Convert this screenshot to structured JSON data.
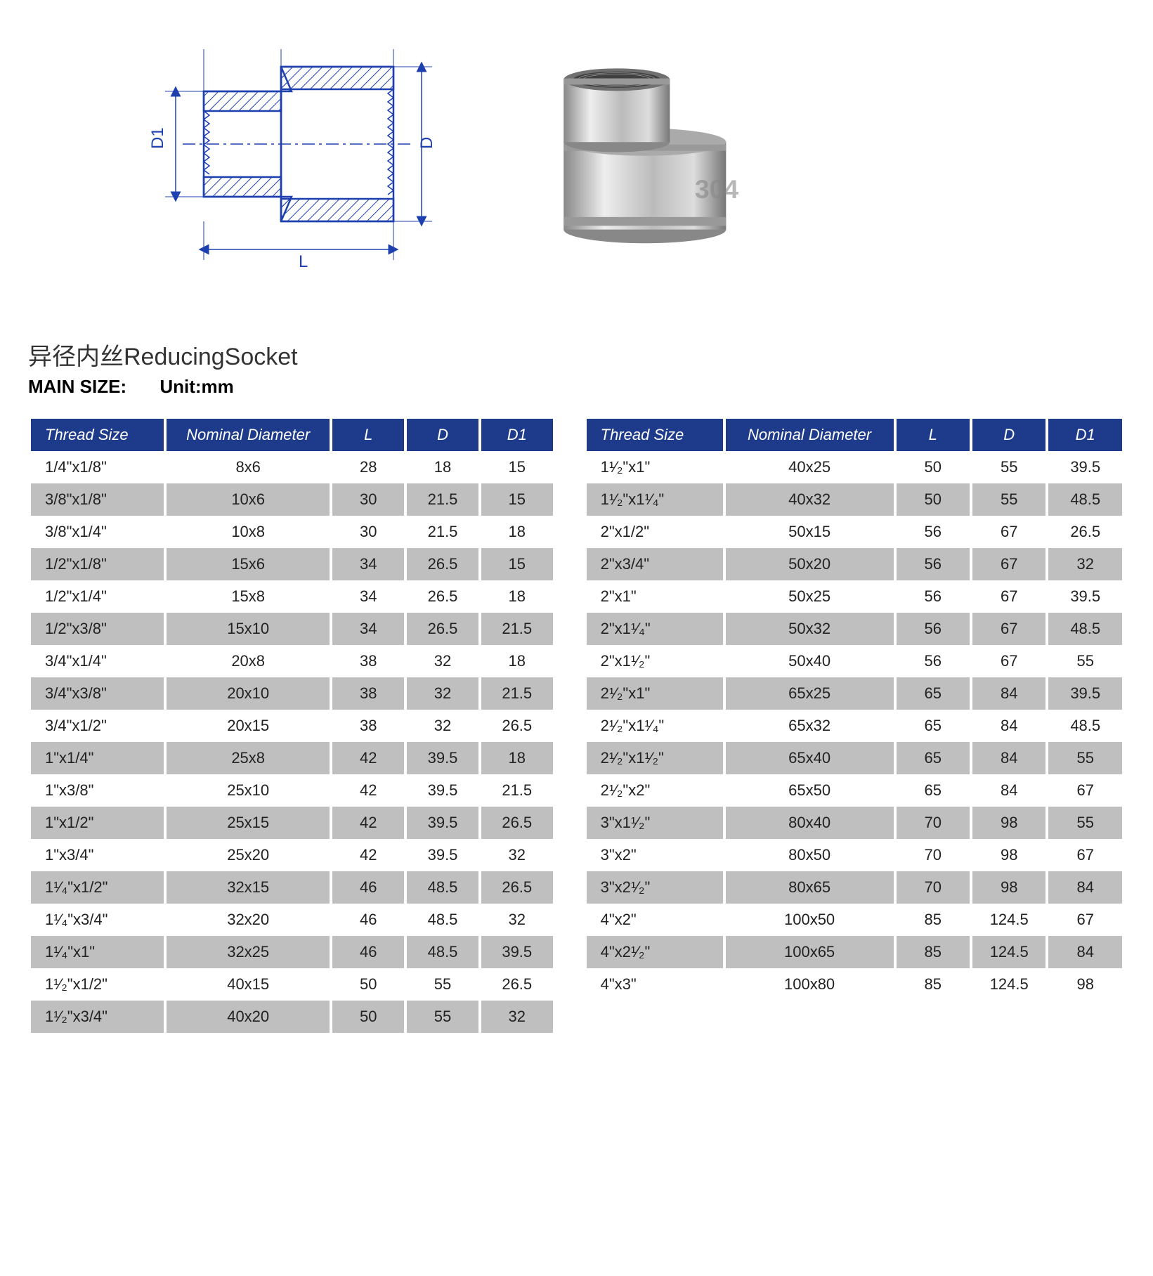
{
  "title": "异径内丝ReducingSocket",
  "subtitle_label": "MAIN  SIZE:",
  "subtitle_unit": "Unit:mm",
  "diagram": {
    "labels": {
      "L": "L",
      "D": "D",
      "D1": "D1"
    },
    "stroke": "#1e40af",
    "hatch": "#1e40af"
  },
  "photo": {
    "description": "stainless-steel-reducing-socket",
    "body_fill": "#d0d0d0",
    "highlight": "#f0f0f0",
    "shadow": "#888888"
  },
  "table_header": {
    "thread": "Thread Size",
    "nominal": "Nominal  Diameter",
    "L": "L",
    "D": "D",
    "D1": "D1"
  },
  "table_header2": {
    "thread": "Thread Size",
    "nominal": "Nominal Diameter",
    "L": "L",
    "D": "D",
    "D1": "D1"
  },
  "colors": {
    "header_bg": "#1e3a8a",
    "row_alt": "#bfbfbf",
    "row_base": "#ffffff"
  },
  "table_left": [
    {
      "thread": "1/4\"x1/8\"",
      "nom": "8x6",
      "L": "28",
      "D": "18",
      "D1": "15"
    },
    {
      "thread": "3/8\"x1/8\"",
      "nom": "10x6",
      "L": "30",
      "D": "21.5",
      "D1": "15"
    },
    {
      "thread": "3/8\"x1/4\"",
      "nom": "10x8",
      "L": "30",
      "D": "21.5",
      "D1": "18"
    },
    {
      "thread": "1/2\"x1/8\"",
      "nom": "15x6",
      "L": "34",
      "D": "26.5",
      "D1": "15"
    },
    {
      "thread": "1/2\"x1/4\"",
      "nom": "15x8",
      "L": "34",
      "D": "26.5",
      "D1": "18"
    },
    {
      "thread": "1/2\"x3/8\"",
      "nom": "15x10",
      "L": "34",
      "D": "26.5",
      "D1": "21.5"
    },
    {
      "thread": "3/4\"x1/4\"",
      "nom": "20x8",
      "L": "38",
      "D": "32",
      "D1": "18"
    },
    {
      "thread": "3/4\"x3/8\"",
      "nom": "20x10",
      "L": "38",
      "D": "32",
      "D1": "21.5"
    },
    {
      "thread": "3/4\"x1/2\"",
      "nom": "20x15",
      "L": "38",
      "D": "32",
      "D1": "26.5"
    },
    {
      "thread": "1\"x1/4\"",
      "nom": "25x8",
      "L": "42",
      "D": "39.5",
      "D1": "18"
    },
    {
      "thread": "1\"x3/8\"",
      "nom": "25x10",
      "L": "42",
      "D": "39.5",
      "D1": "21.5"
    },
    {
      "thread": "1\"x1/2\"",
      "nom": "25x15",
      "L": "42",
      "D": "39.5",
      "D1": "26.5"
    },
    {
      "thread": "1\"x3/4\"",
      "nom": "25x20",
      "L": "42",
      "D": "39.5",
      "D1": "32"
    },
    {
      "thread": "1¹⁄₄\"x1/2\"",
      "nom": "32x15",
      "L": "46",
      "D": "48.5",
      "D1": "26.5"
    },
    {
      "thread": "1¹⁄₄\"x3/4\"",
      "nom": "32x20",
      "L": "46",
      "D": "48.5",
      "D1": "32"
    },
    {
      "thread": "1¹⁄₄\"x1\"",
      "nom": "32x25",
      "L": "46",
      "D": "48.5",
      "D1": "39.5"
    },
    {
      "thread": "1¹⁄₂\"x1/2\"",
      "nom": "40x15",
      "L": "50",
      "D": "55",
      "D1": "26.5"
    },
    {
      "thread": "1¹⁄₂\"x3/4\"",
      "nom": "40x20",
      "L": "50",
      "D": "55",
      "D1": "32"
    }
  ],
  "table_right": [
    {
      "thread": "1¹⁄₂\"x1\"",
      "nom": "40x25",
      "L": "50",
      "D": "55",
      "D1": "39.5"
    },
    {
      "thread": "1¹⁄₂\"x1¹⁄₄\"",
      "nom": "40x32",
      "L": "50",
      "D": "55",
      "D1": "48.5"
    },
    {
      "thread": "2\"x1/2\"",
      "nom": "50x15",
      "L": "56",
      "D": "67",
      "D1": "26.5"
    },
    {
      "thread": "2\"x3/4\"",
      "nom": "50x20",
      "L": "56",
      "D": "67",
      "D1": "32"
    },
    {
      "thread": "2\"x1\"",
      "nom": "50x25",
      "L": "56",
      "D": "67",
      "D1": "39.5"
    },
    {
      "thread": "2\"x1¹⁄₄\"",
      "nom": "50x32",
      "L": "56",
      "D": "67",
      "D1": "48.5"
    },
    {
      "thread": "2\"x1¹⁄₂\"",
      "nom": "50x40",
      "L": "56",
      "D": "67",
      "D1": "55"
    },
    {
      "thread": "2¹⁄₂\"x1\"",
      "nom": "65x25",
      "L": "65",
      "D": "84",
      "D1": "39.5"
    },
    {
      "thread": "2¹⁄₂\"x1¹⁄₄\"",
      "nom": "65x32",
      "L": "65",
      "D": "84",
      "D1": "48.5"
    },
    {
      "thread": "2¹⁄₂\"x1¹⁄₂\"",
      "nom": "65x40",
      "L": "65",
      "D": "84",
      "D1": "55"
    },
    {
      "thread": "2¹⁄₂\"x2\"",
      "nom": "65x50",
      "L": "65",
      "D": "84",
      "D1": "67"
    },
    {
      "thread": "3\"x1¹⁄₂\"",
      "nom": "80x40",
      "L": "70",
      "D": "98",
      "D1": "55"
    },
    {
      "thread": "3\"x2\"",
      "nom": "80x50",
      "L": "70",
      "D": "98",
      "D1": "67"
    },
    {
      "thread": "3\"x2¹⁄₂\"",
      "nom": "80x65",
      "L": "70",
      "D": "98",
      "D1": "84"
    },
    {
      "thread": "4\"x2\"",
      "nom": "100x50",
      "L": "85",
      "D": "124.5",
      "D1": "67"
    },
    {
      "thread": "4\"x2¹⁄₂\"",
      "nom": "100x65",
      "L": "85",
      "D": "124.5",
      "D1": "84"
    },
    {
      "thread": "4\"x3\"",
      "nom": "100x80",
      "L": "85",
      "D": "124.5",
      "D1": "98"
    }
  ]
}
